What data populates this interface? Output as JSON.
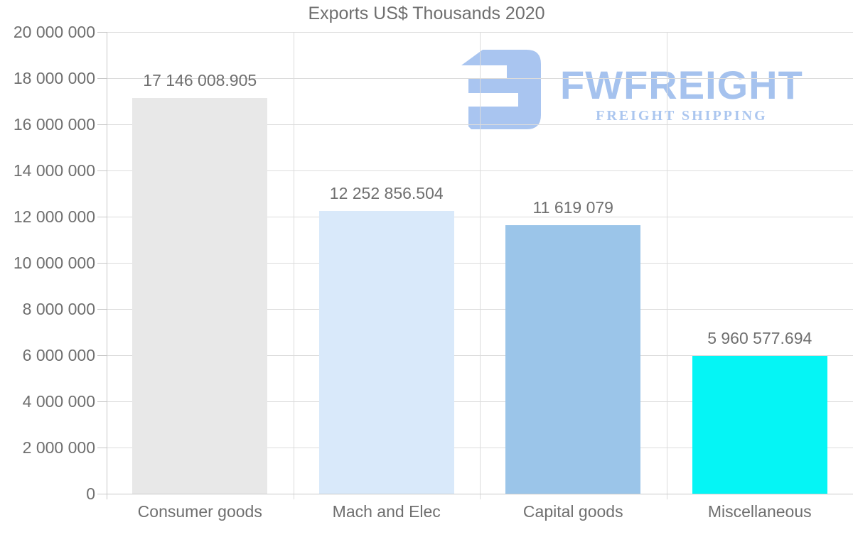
{
  "title": "Exports US$ Thousands 2020",
  "logo": {
    "brand": "FWFREIGHT",
    "tagline": "FREIGHT SHIPPING",
    "icon": "fwfreight-mark",
    "icon_color": "#a9c5f0",
    "brand_color": "#a5c2ee",
    "tagline_color": "#abc6ef"
  },
  "chart_data": {
    "type": "bar",
    "title": "Exports US$ Thousands 2020",
    "categories": [
      "Consumer goods",
      "Mach and Elec",
      "Capital goods",
      "Miscellaneous"
    ],
    "values": [
      17146008.905,
      12252856.504,
      11619079,
      5960577.694
    ],
    "value_labels": [
      "17 146 008.905",
      "12 252 856.504",
      "11 619 079",
      "5 960 577.694"
    ],
    "bar_colors": [
      "#e8e8e8",
      "#d9e9fa",
      "#9bc5e9",
      "#05f5f5"
    ],
    "xlabel": "",
    "ylabel": "",
    "ylim": [
      0,
      20000000
    ],
    "y_tick_step": 2000000,
    "y_tick_labels": [
      "0",
      "2 000 000",
      "4 000 000",
      "6 000 000",
      "8 000 000",
      "10 000 000",
      "12 000 000",
      "14 000 000",
      "16 000 000",
      "18 000 000",
      "20 000 000"
    ],
    "grid": true,
    "legend": false
  },
  "colors": {
    "text": "#6f6f6f",
    "gridline": "#dcdcdc",
    "axis": "#c8c8c8",
    "background": "#ffffff"
  }
}
